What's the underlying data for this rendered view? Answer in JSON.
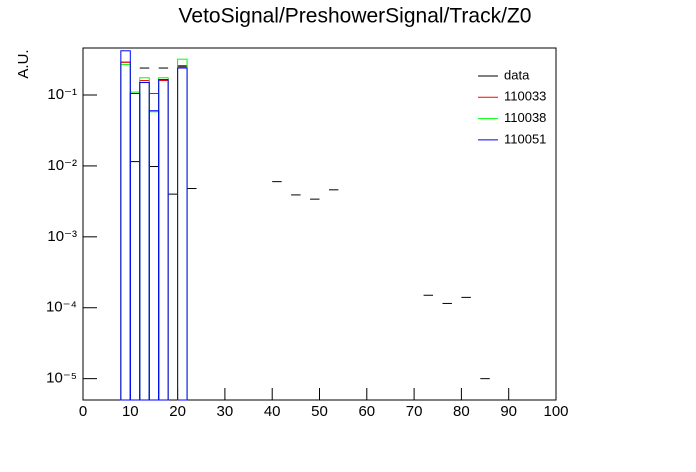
{
  "chart_data": {
    "type": "histogram",
    "title": "VetoSignal/PreshowerSignal/Track/Z0",
    "y_label": "A.U.",
    "log_y": true,
    "bins": [
      0,
      2,
      4,
      6,
      8,
      10,
      12,
      14,
      16,
      18,
      20,
      22,
      24,
      26,
      28,
      30,
      32,
      34,
      36,
      38,
      40,
      42,
      44,
      46,
      48,
      50,
      52,
      54,
      56,
      58,
      60,
      62,
      64,
      66,
      68,
      70,
      72,
      74,
      76,
      78,
      80,
      82,
      84,
      86,
      88,
      90,
      92,
      94,
      96,
      98,
      100
    ],
    "xlim": [
      0,
      100
    ],
    "xticks": [
      0,
      10,
      20,
      30,
      40,
      50,
      60,
      70,
      80,
      90,
      100
    ],
    "ylim": [
      5e-06,
      0.46
    ],
    "yticks": [
      {
        "value": 1e-05,
        "label": "10⁻⁵"
      },
      {
        "value": 0.0001,
        "label": "10⁻⁴"
      },
      {
        "value": 0.001,
        "label": "10⁻³"
      },
      {
        "value": 0.01,
        "label": "10⁻²"
      },
      {
        "value": 0.1,
        "label": "10⁻¹"
      }
    ],
    "legend_position": "top-right",
    "series": [
      {
        "name": "data",
        "color": "#000000",
        "style": "points",
        "values": [
          null,
          null,
          null,
          null,
          0.29,
          0.0115,
          0.24,
          0.0098,
          0.24,
          0.004,
          0.25,
          0.0048,
          null,
          null,
          null,
          null,
          null,
          null,
          null,
          null,
          0.006,
          null,
          0.0039,
          null,
          0.0034,
          null,
          0.0046,
          null,
          null,
          null,
          null,
          null,
          null,
          null,
          null,
          null,
          0.00015,
          null,
          0.000115,
          null,
          0.00014,
          null,
          1e-05,
          null,
          null,
          null,
          null,
          null,
          null,
          null
        ]
      },
      {
        "name": "110033",
        "color": "#ff0000",
        "style": "step",
        "values": [
          null,
          null,
          null,
          null,
          0.29,
          0.105,
          0.16,
          0.105,
          0.16,
          null,
          0.26,
          null,
          null,
          null,
          null,
          null,
          null,
          null,
          null,
          null,
          null,
          null,
          null,
          null,
          null,
          null,
          null,
          null,
          null,
          null,
          null,
          null,
          null,
          null,
          null,
          null,
          null,
          null,
          null,
          null,
          null,
          null,
          null,
          null,
          null,
          null,
          null,
          null,
          null,
          null
        ]
      },
      {
        "name": "110038",
        "color": "#00ff00",
        "style": "step",
        "values": [
          null,
          null,
          null,
          null,
          0.27,
          0.11,
          0.175,
          0.058,
          0.175,
          null,
          0.32,
          null,
          null,
          null,
          null,
          null,
          null,
          null,
          null,
          null,
          null,
          null,
          null,
          null,
          null,
          null,
          null,
          null,
          null,
          null,
          null,
          null,
          null,
          null,
          null,
          null,
          null,
          null,
          null,
          null,
          null,
          null,
          null,
          null,
          null,
          null,
          null,
          null,
          null,
          null
        ]
      },
      {
        "name": "110051",
        "color": "#0000ff",
        "style": "step",
        "values": [
          null,
          null,
          null,
          null,
          0.42,
          0.105,
          0.15,
          0.06,
          0.165,
          null,
          0.24,
          null,
          null,
          null,
          null,
          null,
          null,
          null,
          null,
          null,
          null,
          null,
          null,
          null,
          null,
          null,
          null,
          null,
          null,
          null,
          null,
          null,
          null,
          null,
          null,
          null,
          null,
          null,
          null,
          null,
          null,
          null,
          null,
          null,
          null,
          null,
          null,
          null,
          null,
          null
        ]
      }
    ]
  }
}
